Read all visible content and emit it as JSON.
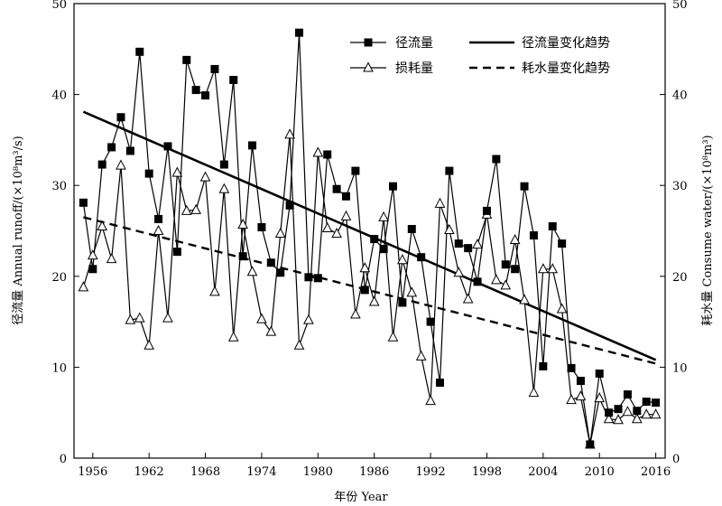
{
  "chart_data": {
    "type": "line",
    "xlabel": "年份 Year",
    "ylabel_left": "径流量 Annual runoff/(×10⁸m³/s)",
    "ylabel_right": "耗水量 Consume water/(×10⁸m³)",
    "ylim": [
      0,
      50
    ],
    "xlim": [
      1954,
      2017
    ],
    "x_ticks": [
      1956,
      1962,
      1968,
      1974,
      1980,
      1986,
      1992,
      1998,
      2004,
      2010,
      2016
    ],
    "y_ticks": [
      0,
      10,
      20,
      30,
      40,
      50
    ],
    "x": [
      1955,
      1956,
      1957,
      1958,
      1959,
      1960,
      1961,
      1962,
      1963,
      1964,
      1965,
      1966,
      1967,
      1968,
      1969,
      1970,
      1971,
      1972,
      1973,
      1974,
      1975,
      1976,
      1977,
      1978,
      1979,
      1980,
      1981,
      1982,
      1983,
      1984,
      1985,
      1986,
      1987,
      1988,
      1989,
      1990,
      1991,
      1992,
      1993,
      1994,
      1995,
      1996,
      1997,
      1998,
      1999,
      2000,
      2001,
      2002,
      2003,
      2004,
      2005,
      2006,
      2007,
      2008,
      2009,
      2010,
      2011,
      2012,
      2013,
      2014,
      2015,
      2016
    ],
    "series": [
      {
        "name": "径流量",
        "marker": "square-filled",
        "values": [
          28.1,
          20.8,
          32.3,
          34.2,
          37.5,
          33.8,
          44.7,
          31.3,
          26.3,
          34.3,
          22.7,
          43.8,
          40.5,
          39.9,
          42.8,
          32.3,
          41.6,
          22.2,
          34.4,
          25.4,
          21.5,
          20.4,
          27.8,
          46.8,
          19.9,
          19.8,
          33.4,
          29.6,
          28.8,
          31.6,
          18.5,
          24.1,
          23.0,
          29.9,
          17.1,
          25.2,
          22.1,
          15.0,
          8.3,
          31.6,
          23.6,
          23.1,
          19.4,
          27.2,
          32.9,
          21.3,
          20.8,
          29.9,
          24.5,
          10.1,
          25.5,
          23.6,
          9.9,
          8.5,
          1.5,
          9.3,
          5.0,
          5.4,
          7.0,
          5.2,
          6.2,
          6.1
        ]
      },
      {
        "name": "损耗量",
        "marker": "triangle-open",
        "values": [
          18.8,
          22.3,
          25.5,
          21.9,
          32.2,
          15.2,
          15.4,
          12.4,
          25.0,
          15.4,
          31.4,
          27.2,
          27.3,
          30.9,
          18.3,
          29.6,
          13.3,
          25.7,
          20.5,
          15.3,
          13.9,
          24.7,
          35.6,
          12.4,
          15.2,
          33.6,
          25.3,
          24.7,
          26.6,
          15.8,
          20.9,
          17.2,
          26.5,
          13.3,
          21.8,
          18.2,
          11.2,
          6.3,
          28.0,
          25.1,
          20.4,
          17.5,
          23.5,
          26.8,
          19.6,
          19.0,
          24.0,
          17.4,
          7.2,
          20.8,
          20.8,
          16.4,
          6.4,
          6.8,
          1.5,
          6.6,
          4.3,
          4.2,
          5.1,
          4.3,
          4.8,
          4.8
        ]
      }
    ],
    "trend_lines": [
      {
        "name": "径流量变化趋势",
        "style": "solid",
        "from": [
          1955,
          38.1
        ],
        "to": [
          2016,
          10.8
        ]
      },
      {
        "name": "耗水量变化趋势",
        "style": "dashed",
        "from": [
          1955,
          26.5
        ],
        "to": [
          2016,
          10.4
        ]
      }
    ],
    "legend_position": "top-right"
  },
  "colors": {
    "line": "#000000",
    "background": "#ffffff"
  }
}
